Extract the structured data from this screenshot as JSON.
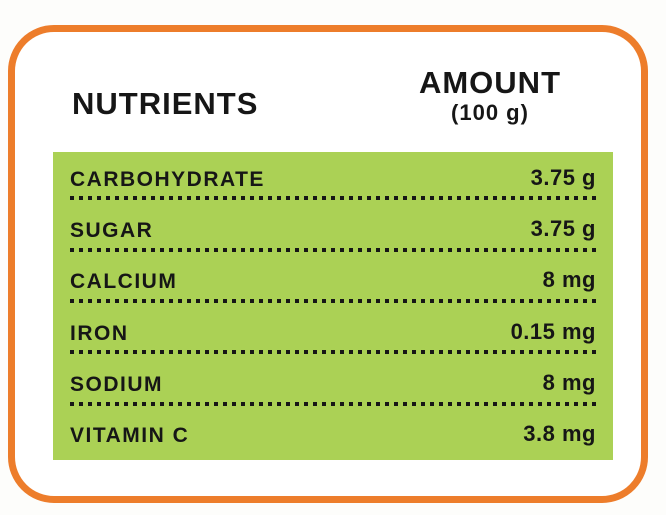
{
  "header": {
    "nutrients_label": "NUTRIENTS",
    "amount_label": "AMOUNT",
    "amount_unit": "(100 g)"
  },
  "table": {
    "rows": [
      {
        "nutrient": "CARBOHYDRATE",
        "amount": "3.75 g"
      },
      {
        "nutrient": "SUGAR",
        "amount": "3.75 g"
      },
      {
        "nutrient": "CALCIUM",
        "amount": "8 mg"
      },
      {
        "nutrient": "IRON",
        "amount": "0.15 mg"
      },
      {
        "nutrient": "SODIUM",
        "amount": "8 mg"
      },
      {
        "nutrient": "VITAMIN C",
        "amount": "3.8 mg"
      }
    ]
  },
  "colors": {
    "border_orange": "#ED7D2B",
    "panel_green": "#ABD155",
    "text_black": "#161616"
  }
}
